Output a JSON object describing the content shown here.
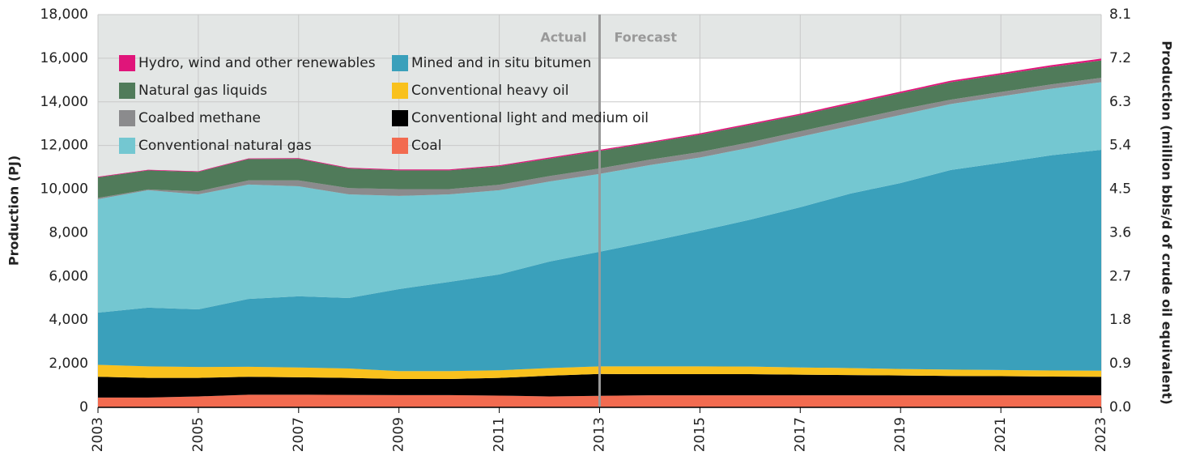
{
  "chart_data": {
    "type": "stacked_area",
    "y_label": "Production (PJ)",
    "y2_label": "Production (million bbls/d of crude oil equivalent)",
    "annotations": [
      "Actual",
      "Forecast"
    ],
    "forecast_start": 2013,
    "x": [
      2003,
      2004,
      2005,
      2006,
      2007,
      2008,
      2009,
      2010,
      2011,
      2012,
      2013,
      2014,
      2015,
      2016,
      2017,
      2018,
      2019,
      2020,
      2021,
      2022,
      2023
    ],
    "xlim": [
      2003,
      2023
    ],
    "xticks": [
      2003,
      2005,
      2007,
      2009,
      2011,
      2013,
      2015,
      2017,
      2019,
      2021,
      2023
    ],
    "ylim": [
      0,
      18000
    ],
    "yticks": [
      0,
      {
        "value": 2000,
        "label": "2,000"
      },
      {
        "value": 4000,
        "label": "4,000"
      },
      {
        "value": 6000,
        "label": "6,000"
      },
      {
        "value": 8000,
        "label": "8,000"
      },
      {
        "value": 10000,
        "label": "10,000"
      },
      {
        "value": 12000,
        "label": "12,000"
      },
      {
        "value": 14000,
        "label": "14,000"
      },
      {
        "value": 16000,
        "label": "16,000"
      },
      {
        "value": 18000,
        "label": "18,000"
      }
    ],
    "y2lim": [
      0,
      8.1
    ],
    "y2ticks": [
      {
        "value": 0,
        "label": "0.0"
      },
      0.9,
      1.8,
      2.7,
      3.6,
      4.5,
      5.4,
      6.3,
      7.2,
      8.1
    ],
    "grid": true,
    "series": [
      {
        "name": "Coal",
        "color": "#f26b50",
        "values": [
          450,
          450,
          500,
          580,
          580,
          570,
          560,
          560,
          540,
          500,
          530,
          550,
          550,
          550,
          550,
          550,
          550,
          550,
          550,
          550,
          550
        ]
      },
      {
        "name": "Conventional light and medium oil",
        "color": "#000000",
        "values": [
          950,
          900,
          850,
          820,
          800,
          780,
          740,
          740,
          810,
          950,
          1000,
          970,
          970,
          970,
          950,
          930,
          910,
          890,
          880,
          860,
          850
        ]
      },
      {
        "name": "Conventional heavy oil",
        "color": "#f9c11d",
        "values": [
          550,
          530,
          500,
          460,
          450,
          430,
          360,
          360,
          350,
          350,
          350,
          360,
          360,
          350,
          330,
          320,
          300,
          290,
          280,
          280,
          280
        ]
      },
      {
        "name": "Mined and in situ bitumen",
        "color": "#3aa0bb",
        "values": [
          2390,
          2690,
          2640,
          3110,
          3260,
          3230,
          3760,
          4090,
          4390,
          4880,
          5250,
          5720,
          6210,
          6730,
          7340,
          8000,
          8520,
          9150,
          9500,
          9860,
          10120
        ]
      },
      {
        "name": "Conventional natural gas",
        "color": "#74c7d1",
        "values": [
          5200,
          5380,
          5270,
          5240,
          5040,
          4750,
          4270,
          4010,
          3860,
          3670,
          3570,
          3500,
          3360,
          3300,
          3230,
          3100,
          3120,
          3020,
          3040,
          3050,
          3100
        ]
      },
      {
        "name": "Coalbed methane",
        "color": "#8b8b8d",
        "values": [
          60,
          40,
          140,
          190,
          270,
          290,
          310,
          240,
          250,
          250,
          250,
          250,
          250,
          250,
          250,
          250,
          250,
          200,
          200,
          200,
          200
        ]
      },
      {
        "name": "Natural gas liquids",
        "color": "#507b5a",
        "values": [
          940,
          870,
          890,
          980,
          990,
          900,
          860,
          860,
          850,
          800,
          800,
          770,
          800,
          800,
          750,
          750,
          750,
          800,
          800,
          800,
          800
        ]
      },
      {
        "name": "Hydro, wind and other renewables",
        "color": "#e0157a",
        "values": [
          30,
          30,
          30,
          30,
          30,
          30,
          40,
          40,
          40,
          50,
          50,
          50,
          60,
          60,
          60,
          70,
          70,
          70,
          70,
          80,
          80
        ]
      }
    ]
  }
}
